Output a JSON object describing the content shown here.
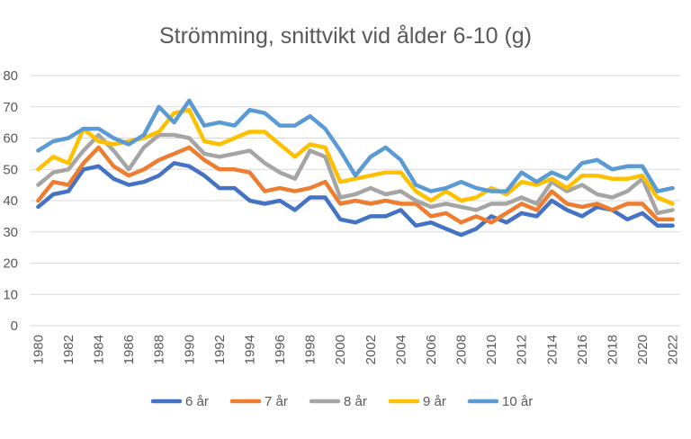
{
  "chart_data": {
    "type": "line",
    "title": "Strömming, snittvikt vid ålder 6-10 (g)",
    "xlabel": "",
    "ylabel": "",
    "ylim": [
      0,
      80
    ],
    "yticks": [
      0,
      10,
      20,
      30,
      40,
      50,
      60,
      70,
      80
    ],
    "x": [
      1980,
      1981,
      1982,
      1983,
      1984,
      1985,
      1986,
      1987,
      1988,
      1989,
      1990,
      1991,
      1992,
      1993,
      1994,
      1995,
      1996,
      1997,
      1998,
      1999,
      2000,
      2001,
      2002,
      2003,
      2004,
      2005,
      2006,
      2007,
      2008,
      2009,
      2010,
      2011,
      2012,
      2013,
      2014,
      2015,
      2016,
      2017,
      2018,
      2019,
      2020,
      2021,
      2022
    ],
    "xtick_labels": [
      "1980",
      "1982",
      "1984",
      "1986",
      "1988",
      "1990",
      "1992",
      "1994",
      "1996",
      "1998",
      "2000",
      "2002",
      "2004",
      "2006",
      "2008",
      "2010",
      "2012",
      "2014",
      "2016",
      "2018",
      "2020",
      "2022"
    ],
    "grid": true,
    "legend_position": "bottom",
    "series": [
      {
        "name": "6 år",
        "color": "#4472c4",
        "values": [
          38,
          42,
          43,
          50,
          51,
          47,
          45,
          46,
          48,
          52,
          51,
          48,
          44,
          44,
          40,
          39,
          40,
          37,
          41,
          41,
          34,
          33,
          35,
          35,
          37,
          32,
          33,
          31,
          29,
          31,
          35,
          33,
          36,
          35,
          40,
          37,
          35,
          38,
          37,
          34,
          36,
          32,
          32
        ]
      },
      {
        "name": "7 år",
        "color": "#ed7d31",
        "values": [
          40,
          46,
          45,
          52,
          57,
          51,
          48,
          50,
          53,
          55,
          57,
          53,
          50,
          50,
          49,
          43,
          44,
          43,
          44,
          46,
          39,
          40,
          39,
          40,
          39,
          39,
          35,
          36,
          33,
          35,
          33,
          36,
          39,
          37,
          43,
          39,
          38,
          39,
          37,
          39,
          39,
          34,
          34
        ]
      },
      {
        "name": "8 år",
        "color": "#a5a5a5",
        "values": [
          45,
          49,
          50,
          56,
          61,
          56,
          50,
          57,
          61,
          61,
          60,
          55,
          54,
          55,
          56,
          52,
          49,
          47,
          56,
          54,
          41,
          42,
          44,
          42,
          43,
          40,
          38,
          39,
          38,
          37,
          39,
          39,
          41,
          39,
          46,
          43,
          45,
          42,
          41,
          43,
          47,
          36,
          37
        ]
      },
      {
        "name": "9 år",
        "color": "#ffc000",
        "values": [
          50,
          54,
          52,
          63,
          59,
          58,
          59,
          60,
          62,
          68,
          69,
          59,
          58,
          60,
          62,
          62,
          58,
          54,
          58,
          57,
          46,
          47,
          48,
          49,
          49,
          43,
          40,
          43,
          40,
          41,
          44,
          42,
          46,
          45,
          47,
          44,
          48,
          48,
          47,
          47,
          48,
          41,
          39
        ]
      },
      {
        "name": "10 år",
        "color": "#5b9bd5",
        "values": [
          56,
          59,
          60,
          63,
          63,
          60,
          58,
          61,
          70,
          65,
          72,
          64,
          65,
          64,
          69,
          68,
          64,
          64,
          67,
          63,
          56,
          48,
          54,
          57,
          53,
          45,
          43,
          44,
          46,
          44,
          43,
          43,
          49,
          46,
          49,
          47,
          52,
          53,
          50,
          51,
          51,
          43,
          44
        ]
      }
    ]
  }
}
